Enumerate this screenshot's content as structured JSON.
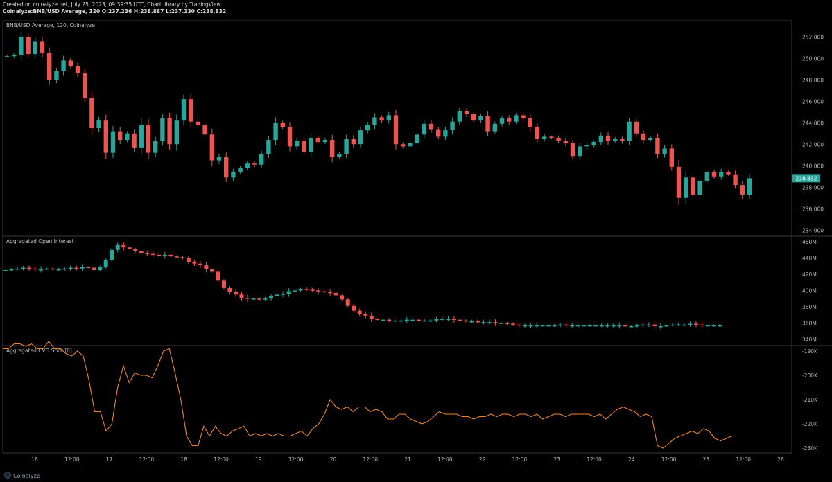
{
  "header": {
    "line1": "Created on coinalyze.net, July 25, 2023, 09:39:35 UTC, Chart library by TradingView",
    "line2": "Coinalyze:BNB/USD Average, 120 O:237.236 H:238.887 L:237.130 C:238.832"
  },
  "footer": {
    "brand": "Coinalyze"
  },
  "colors": {
    "up": "#26a69a",
    "down": "#ef5350",
    "line": "#f0852d",
    "grid": "#2a2a2a",
    "text": "#b8b8b8",
    "price_tag": "#26a69a"
  },
  "chart_data": [
    {
      "type": "candlestick",
      "title": "BNB/USD Average, 120, Coinalyze",
      "ylim": [
        233.5,
        253.5
      ],
      "yticks": [
        "234.000",
        "236.000",
        "238.000",
        "240.000",
        "242.000",
        "244.000",
        "246.000",
        "248.000",
        "250.000",
        "252.000"
      ],
      "last_price_label": "238.832",
      "x_ticks": [
        "16",
        "12:00",
        "17",
        "12:00",
        "18",
        "12:00",
        "19",
        "12:00",
        "20",
        "12:00",
        "21",
        "12:00",
        "22",
        "12:00",
        "23",
        "12:00",
        "24",
        "12:00",
        "25",
        "12:00",
        "26"
      ],
      "closes": [
        250.2,
        250.3,
        252.0,
        250.4,
        251.6,
        250.5,
        248.0,
        248.8,
        249.8,
        249.3,
        248.6,
        246.3,
        243.5,
        244.2,
        241.2,
        243.2,
        242.4,
        243.0,
        241.7,
        243.8,
        241.2,
        242.3,
        244.4,
        242.0,
        244.2,
        246.2,
        244.1,
        243.8,
        242.9,
        240.5,
        240.8,
        238.9,
        239.4,
        239.8,
        240.2,
        240.1,
        241.1,
        242.4,
        244.0,
        243.6,
        241.8,
        242.3,
        241.3,
        242.6,
        242.2,
        242.4,
        240.8,
        241.1,
        242.5,
        242.0,
        243.3,
        243.8,
        244.5,
        244.2,
        244.7,
        242.0,
        241.8,
        242.1,
        242.9,
        243.9,
        243.4,
        242.7,
        243.3,
        244.1,
        245.1,
        244.8,
        244.2,
        244.6,
        243.2,
        243.9,
        244.4,
        244.1,
        244.7,
        244.4,
        243.6,
        242.5,
        242.7,
        242.6,
        242.3,
        242.1,
        240.9,
        241.8,
        241.9,
        242.2,
        242.8,
        242.3,
        242.5,
        242.3,
        244.1,
        243.0,
        242.4,
        242.6,
        241.1,
        241.6,
        239.9,
        237.0,
        238.9,
        237.3,
        238.6,
        239.4,
        239.0,
        239.4,
        239.2,
        238.2,
        237.3,
        238.83
      ]
    },
    {
      "type": "candlestick",
      "title": "Aggregated Open Interest",
      "ylim": [
        333,
        466
      ],
      "yticks": [
        "340M",
        "360M",
        "380M",
        "400M",
        "420M",
        "440M",
        "460M"
      ],
      "closes": [
        425,
        426,
        427,
        428,
        427,
        426,
        426,
        427,
        426,
        426,
        427,
        428,
        427,
        429,
        428,
        425,
        429,
        437,
        450,
        456,
        453,
        451,
        448,
        446,
        445,
        444,
        443,
        444,
        442,
        441,
        440,
        435,
        433,
        431,
        426,
        423,
        412,
        403,
        398,
        395,
        391,
        390,
        390,
        389,
        390,
        393,
        395,
        396,
        399,
        400,
        402,
        401,
        400,
        399,
        398,
        397,
        394,
        389,
        381,
        375,
        371,
        369,
        365,
        364,
        364,
        363,
        363,
        363,
        364,
        364,
        363,
        363,
        363,
        365,
        365,
        365,
        364,
        363,
        362,
        362,
        361,
        361,
        361,
        360,
        360,
        359,
        358,
        357,
        357,
        357,
        357,
        357,
        357,
        357,
        358,
        357,
        357,
        357,
        357,
        357,
        357,
        357,
        357,
        357,
        357,
        356,
        356,
        357,
        358,
        358,
        356,
        356,
        357,
        358,
        358,
        358,
        359,
        358,
        357,
        357,
        357,
        357
      ]
    },
    {
      "type": "line",
      "title": "Aggregated CVD Spot [0]",
      "ylim": [
        -232,
        -188
      ],
      "yticks": [
        "-190K",
        "-200K",
        "-210K",
        "-220K",
        "-230K"
      ],
      "values": [
        -189,
        -189,
        -187,
        -187,
        -188,
        -187,
        -189,
        -189,
        -186,
        -189,
        -189,
        -191,
        -192,
        -190,
        -192,
        -202,
        -215,
        -215,
        -223,
        -220,
        -205,
        -196,
        -203,
        -199,
        -200,
        -200,
        -201,
        -196,
        -190,
        -189,
        -199,
        -210,
        -225,
        -229,
        -229,
        -221,
        -225,
        -221,
        -224,
        -225,
        -223,
        -222,
        -221,
        -225,
        -224,
        -225,
        -224,
        -225,
        -224,
        -225,
        -225,
        -224,
        -223,
        -225,
        -222,
        -220,
        -216,
        -210,
        -213,
        -214,
        -213,
        -215,
        -213,
        -213,
        -215,
        -214,
        -215,
        -218,
        -218,
        -216,
        -216,
        -218,
        -219,
        -220,
        -219,
        -217,
        -215,
        -216,
        -216,
        -216,
        -217,
        -217,
        -218,
        -217,
        -217,
        -216,
        -217,
        -216,
        -216,
        -217,
        -216,
        -216,
        -217,
        -216,
        -218,
        -217,
        -216,
        -216,
        -217,
        -216,
        -216,
        -216,
        -216,
        -217,
        -216,
        -218,
        -216,
        -214,
        -213,
        -214,
        -215,
        -217,
        -216,
        -217,
        -229,
        -230,
        -228,
        -226,
        -225,
        -224,
        -223,
        -224,
        -222,
        -223,
        -226,
        -227,
        -226,
        -225
      ]
    }
  ]
}
